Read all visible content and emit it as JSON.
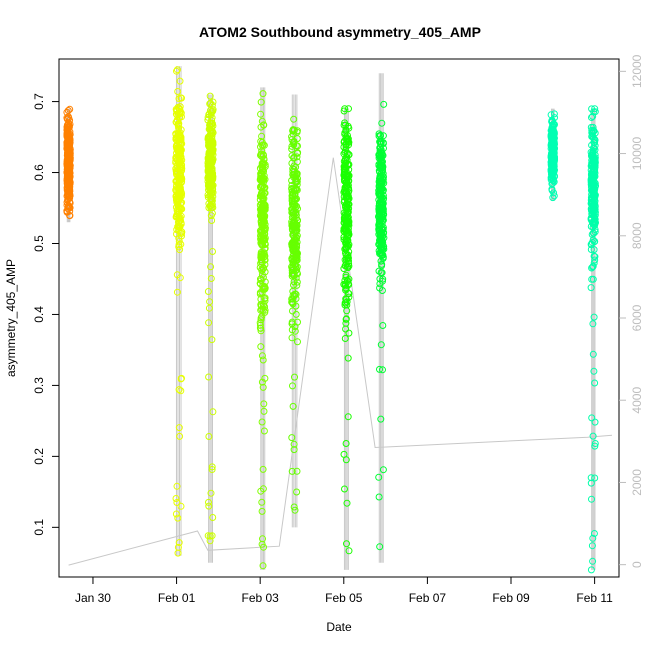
{
  "chart_data": {
    "type": "scatter",
    "title": "ATOM2 Southbound asymmetry_405_AMP",
    "xlabel": "Date",
    "ylabel": "asymmetry_405_AMP",
    "x_ticks": [
      "Jan 30",
      "Feb 01",
      "Feb 03",
      "Feb 05",
      "Feb 07",
      "Feb 09",
      "Feb 11"
    ],
    "x_tick_dates": [
      "2016-01-30",
      "2016-02-01",
      "2016-02-03",
      "2016-02-05",
      "2016-02-07",
      "2016-02-09",
      "2016-02-11"
    ],
    "xlim": [
      "2016-01-29T04:30",
      "2016-02-11T14:00"
    ],
    "ylim": [
      0.03,
      0.76
    ],
    "y_ticks": [
      "0.1",
      "0.2",
      "0.3",
      "0.4",
      "0.5",
      "0.6",
      "0.7"
    ],
    "y_right_ticks": [
      "0",
      "2000",
      "4000",
      "6000",
      "8000",
      "10000",
      "12000"
    ],
    "y_right_lim": [
      -300,
      12300
    ],
    "marker": "open-circle",
    "grid": false,
    "legend": "none",
    "colors": {
      "line": "#c8c8c8",
      "frame": "#000000",
      "right_axis": "#bdbdbd"
    },
    "series": [
      {
        "x_start": "2016-01-29T09:00",
        "x_end": "2016-01-29T11:00",
        "y_center": 0.615,
        "y_spread": 0.06,
        "y_min": 0.53,
        "y_max": 0.69,
        "color": "#ff8000"
      },
      {
        "x_start": "2016-01-31T23:30",
        "x_end": "2016-02-01T03:00",
        "y_center": 0.6,
        "y_spread": 0.1,
        "y_min": 0.06,
        "y_max": 0.75,
        "color": "#e6ff00"
      },
      {
        "x_start": "2016-02-01T18:00",
        "x_end": "2016-02-01T21:00",
        "y_center": 0.62,
        "y_spread": 0.07,
        "y_min": 0.05,
        "y_max": 0.71,
        "color": "#ccff00"
      },
      {
        "x_start": "2016-02-03T00:00",
        "x_end": "2016-02-03T03:00",
        "y_center": 0.52,
        "y_spread": 0.14,
        "y_min": 0.04,
        "y_max": 0.72,
        "color": "#80ff00"
      },
      {
        "x_start": "2016-02-03T18:00",
        "x_end": "2016-02-03T21:30",
        "y_center": 0.53,
        "y_spread": 0.13,
        "y_min": 0.1,
        "y_max": 0.71,
        "color": "#66ff00"
      },
      {
        "x_start": "2016-02-05T00:00",
        "x_end": "2016-02-05T03:00",
        "y_center": 0.55,
        "y_spread": 0.12,
        "y_min": 0.04,
        "y_max": 0.69,
        "color": "#1aff00"
      },
      {
        "x_start": "2016-02-05T20:00",
        "x_end": "2016-02-05T23:00",
        "y_center": 0.56,
        "y_spread": 0.1,
        "y_min": 0.05,
        "y_max": 0.74,
        "color": "#00ff33"
      },
      {
        "x_start": "2016-02-09T23:00",
        "x_end": "2016-02-10T01:00",
        "y_center": 0.63,
        "y_spread": 0.04,
        "y_min": 0.56,
        "y_max": 0.69,
        "color": "#00ffb3"
      },
      {
        "x_start": "2016-02-10T22:00",
        "x_end": "2016-02-11T00:30",
        "y_center": 0.58,
        "y_spread": 0.1,
        "y_min": 0.04,
        "y_max": 0.69,
        "color": "#00ffaa"
      }
    ],
    "count_line": {
      "y_axis": "right",
      "x": [
        "2016-01-29T10:00",
        "2016-02-01T12:00",
        "2016-02-01T18:00",
        "2016-02-03T11:00",
        "2016-02-04T18:00",
        "2016-02-05T18:00",
        "2016-02-10T20:00",
        "2016-02-11T10:00"
      ],
      "y": [
        -10,
        820,
        350,
        450,
        9900,
        2850,
        3100,
        3150
      ]
    }
  }
}
